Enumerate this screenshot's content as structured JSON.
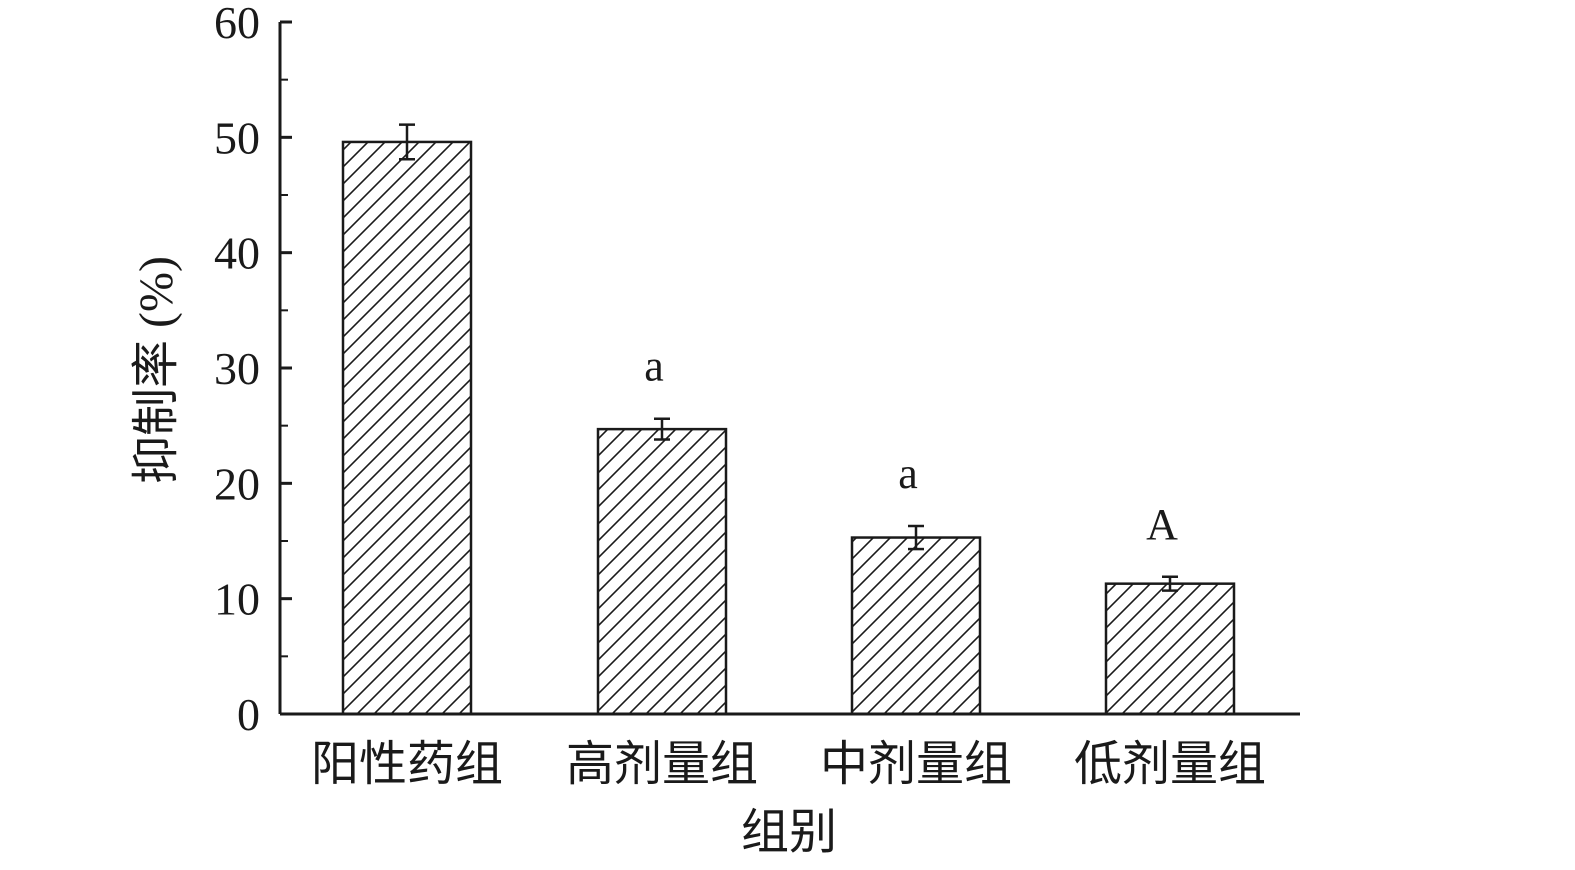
{
  "chart_data": {
    "type": "bar",
    "categories": [
      "阳性药组",
      "高剂量组",
      "中剂量组",
      "低剂量组"
    ],
    "values": [
      49.6,
      24.7,
      15.3,
      11.3
    ],
    "errors": [
      1.5,
      0.9,
      1.0,
      0.6
    ],
    "significance_labels": [
      "",
      "a",
      "a",
      "A"
    ],
    "xlabel": "组别",
    "ylabel": "抑制率 (%)",
    "ylim": [
      0,
      60
    ],
    "yticks": [
      0,
      10,
      20,
      30,
      40,
      50,
      60
    ],
    "bar_fill": "hatched",
    "colors": {
      "stroke": "#1a1a1a",
      "background": "#ffffff"
    },
    "grid": false,
    "legend": "none"
  }
}
